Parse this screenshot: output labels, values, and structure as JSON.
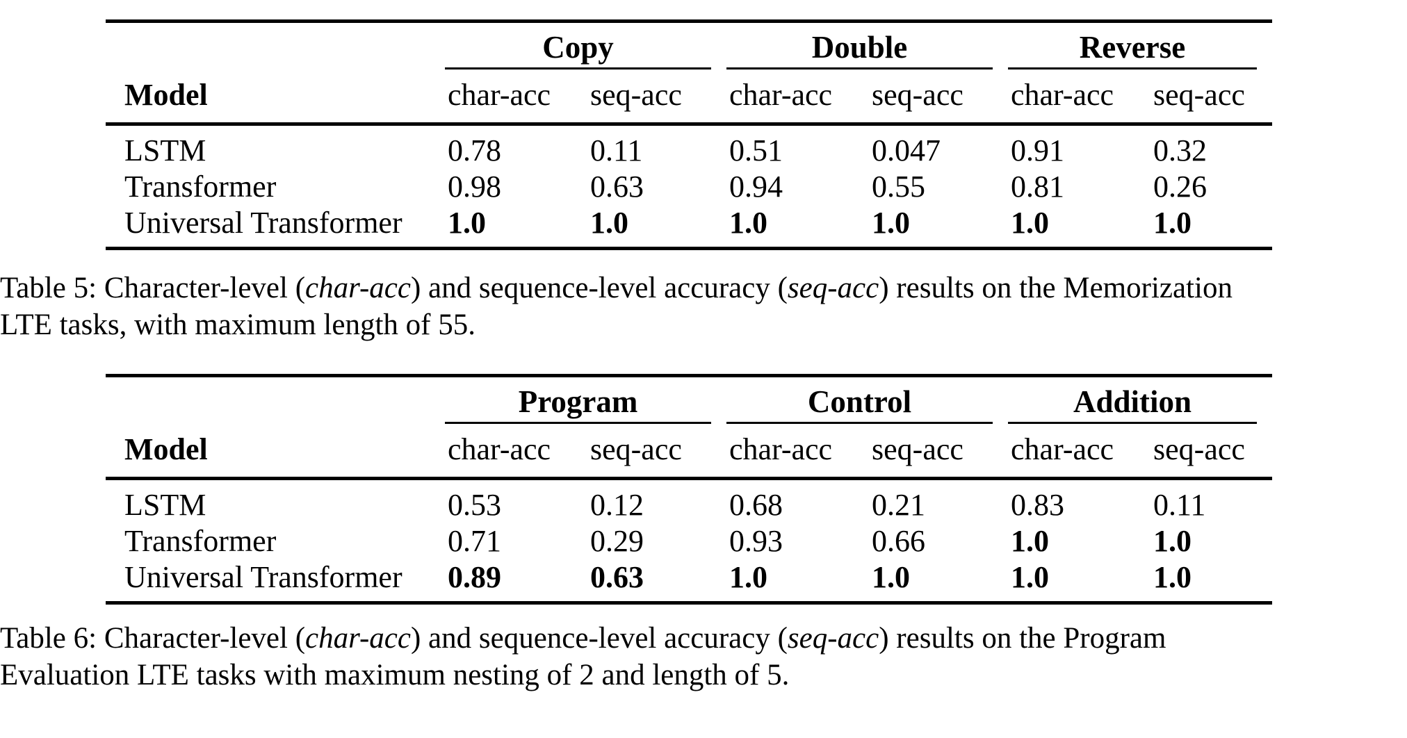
{
  "page": {
    "background": "#ffffff",
    "text_color": "#000000",
    "rule_color": "#000000"
  },
  "tables": [
    {
      "name": "memorization-results-table",
      "model_header": "Model",
      "groups": [
        {
          "label": "Copy"
        },
        {
          "label": "Double"
        },
        {
          "label": "Reverse"
        }
      ],
      "sub_headers": [
        "char-acc",
        "seq-acc"
      ],
      "rows": [
        {
          "model": "LSTM",
          "cells": [
            {
              "v": "0.78",
              "b": false
            },
            {
              "v": "0.11",
              "b": false
            },
            {
              "v": "0.51",
              "b": false
            },
            {
              "v": "0.047",
              "b": false
            },
            {
              "v": "0.91",
              "b": false
            },
            {
              "v": "0.32",
              "b": false
            }
          ]
        },
        {
          "model": "Transformer",
          "cells": [
            {
              "v": "0.98",
              "b": false
            },
            {
              "v": "0.63",
              "b": false
            },
            {
              "v": "0.94",
              "b": false
            },
            {
              "v": "0.55",
              "b": false
            },
            {
              "v": "0.81",
              "b": false
            },
            {
              "v": "0.26",
              "b": false
            }
          ]
        },
        {
          "model": "Universal Transformer",
          "cells": [
            {
              "v": "1.0",
              "b": true
            },
            {
              "v": "1.0",
              "b": true
            },
            {
              "v": "1.0",
              "b": true
            },
            {
              "v": "1.0",
              "b": true
            },
            {
              "v": "1.0",
              "b": true
            },
            {
              "v": "1.0",
              "b": true
            }
          ]
        }
      ],
      "caption_lines": [
        {
          "segments": [
            {
              "text": "Table 5: Character-level (",
              "italic": false
            },
            {
              "text": "char-acc",
              "italic": true
            },
            {
              "text": ") and sequence-level accuracy (",
              "italic": false
            },
            {
              "text": "seq-acc",
              "italic": true
            },
            {
              "text": ") results on the Memorization",
              "italic": false
            }
          ]
        },
        {
          "segments": [
            {
              "text": "LTE tasks, with maximum length of 55.",
              "italic": false
            }
          ]
        }
      ]
    },
    {
      "name": "program-evaluation-results-table",
      "model_header": "Model",
      "groups": [
        {
          "label": "Program"
        },
        {
          "label": "Control"
        },
        {
          "label": "Addition"
        }
      ],
      "sub_headers": [
        "char-acc",
        "seq-acc"
      ],
      "rows": [
        {
          "model": "LSTM",
          "cells": [
            {
              "v": "0.53",
              "b": false
            },
            {
              "v": "0.12",
              "b": false
            },
            {
              "v": "0.68",
              "b": false
            },
            {
              "v": "0.21",
              "b": false
            },
            {
              "v": "0.83",
              "b": false
            },
            {
              "v": "0.11",
              "b": false
            }
          ]
        },
        {
          "model": "Transformer",
          "cells": [
            {
              "v": "0.71",
              "b": false
            },
            {
              "v": "0.29",
              "b": false
            },
            {
              "v": "0.93",
              "b": false
            },
            {
              "v": "0.66",
              "b": false
            },
            {
              "v": "1.0",
              "b": true
            },
            {
              "v": "1.0",
              "b": true
            }
          ]
        },
        {
          "model": "Universal Transformer",
          "cells": [
            {
              "v": "0.89",
              "b": true
            },
            {
              "v": "0.63",
              "b": true
            },
            {
              "v": "1.0",
              "b": true
            },
            {
              "v": "1.0",
              "b": true
            },
            {
              "v": "1.0",
              "b": true
            },
            {
              "v": "1.0",
              "b": true
            }
          ]
        }
      ],
      "caption_lines": [
        {
          "segments": [
            {
              "text": "Table 6: Character-level (",
              "italic": false
            },
            {
              "text": "char-acc",
              "italic": true
            },
            {
              "text": ") and sequence-level accuracy (",
              "italic": false
            },
            {
              "text": "seq-acc",
              "italic": true
            },
            {
              "text": ") results on the Program",
              "italic": false
            }
          ]
        },
        {
          "segments": [
            {
              "text": "Evaluation LTE tasks with maximum nesting of 2 and length of 5.",
              "italic": false
            }
          ]
        }
      ]
    }
  ]
}
